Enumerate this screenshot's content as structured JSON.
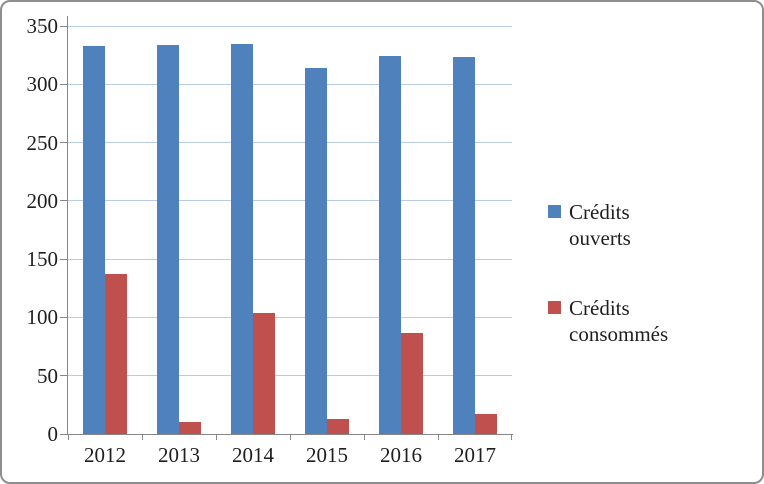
{
  "chart_data": {
    "type": "bar",
    "categories": [
      "2012",
      "2013",
      "2014",
      "2015",
      "2016",
      "2017"
    ],
    "series": [
      {
        "name": "Crédits ouverts",
        "color": "#4F81BD",
        "values": [
          333,
          334,
          335,
          314,
          324,
          323
        ]
      },
      {
        "name": "Crédits consommés",
        "color": "#C0504D",
        "values": [
          137,
          10,
          104,
          13,
          87,
          17
        ]
      }
    ],
    "title": "",
    "xlabel": "",
    "ylabel": "",
    "ylim": [
      0,
      350
    ],
    "ytick_step": 50,
    "ytick_labels": [
      "0",
      "50",
      "100",
      "150",
      "200",
      "250",
      "300",
      "350"
    ],
    "grid": true,
    "legend_position": "right"
  },
  "colors": {
    "gridline": "#B8CCE4",
    "axis": "#868686",
    "text": "#1F1F1F",
    "frame_border": "#8E8E8E",
    "background": "#FFFFFF"
  }
}
